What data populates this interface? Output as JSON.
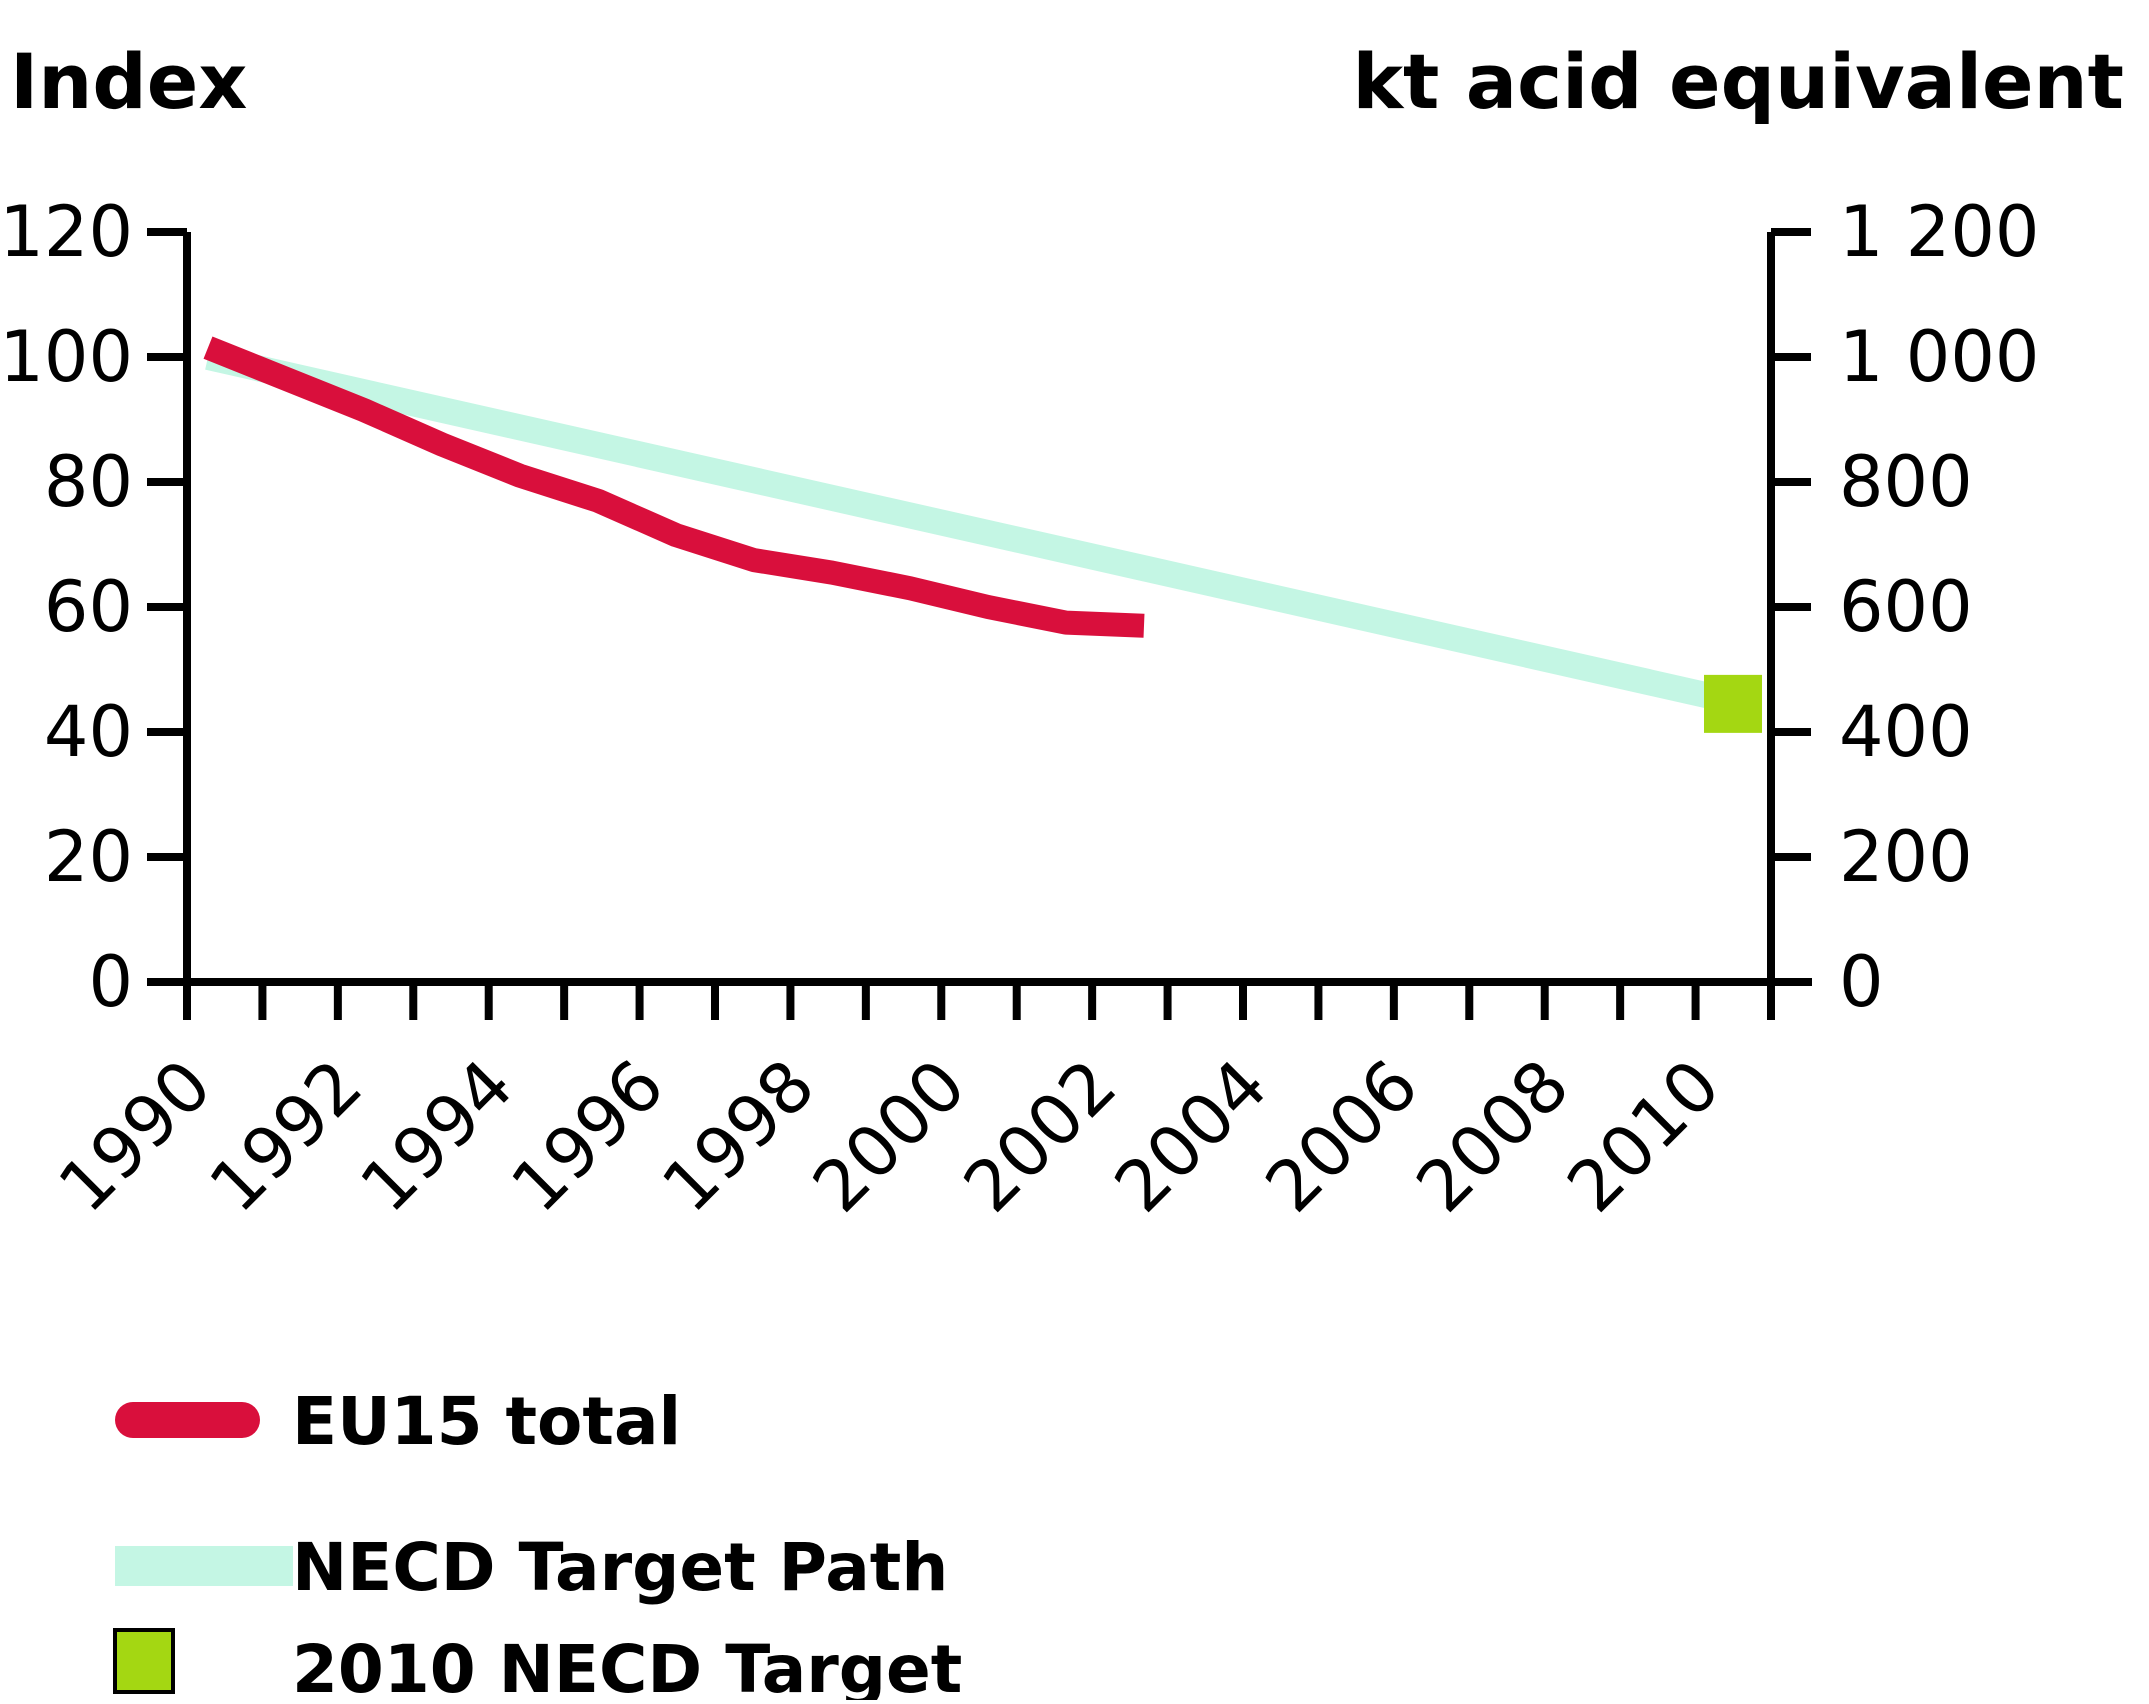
{
  "titles": {
    "left": "Index",
    "right": "kt acid equivalent"
  },
  "chart_data": {
    "type": "line",
    "title": "",
    "grid": false,
    "left_axis": {
      "label": "Index",
      "ticks": [
        0,
        20,
        40,
        60,
        80,
        100,
        120
      ],
      "range": [
        0,
        120
      ]
    },
    "right_axis": {
      "label": "kt acid equivalent",
      "ticks": [
        "0",
        "200",
        "400",
        "600",
        "800",
        "1 000",
        "1 200"
      ],
      "range": [
        0,
        1200
      ]
    },
    "x_axis": {
      "tick_years": [
        1990,
        1991,
        1992,
        1993,
        1994,
        1995,
        1996,
        1997,
        1998,
        1999,
        2000,
        2001,
        2002,
        2003,
        2004,
        2005,
        2006,
        2007,
        2008,
        2009,
        2010
      ],
      "label_years": [
        "1990",
        "1992",
        "1994",
        "1996",
        "1998",
        "2000",
        "2002",
        "2004",
        "2006",
        "2008",
        "2010"
      ],
      "range": [
        1990,
        2010
      ]
    },
    "series": [
      {
        "name": "NECD Target Path",
        "type": "line",
        "color": "#c4f6e4",
        "linewidth": 26,
        "x": [
          1990,
          2010
        ],
        "values": [
          100,
          44.5
        ]
      },
      {
        "name": "EU15 total",
        "type": "line",
        "color": "#d90f3c",
        "linewidth": 24,
        "x": [
          1990,
          1991,
          1992,
          1993,
          1994,
          1995,
          1996,
          1997,
          1998,
          1999,
          2000,
          2001,
          2002
        ],
        "values": [
          101.5,
          96.5,
          91.5,
          86,
          81,
          77,
          71.5,
          67.5,
          65.5,
          63,
          60,
          57.5,
          57
        ]
      },
      {
        "name": "2010 NECD Target",
        "type": "point",
        "marker": "square",
        "color": "#a4d712",
        "x": [
          2010
        ],
        "values": [
          44.5
        ]
      }
    ],
    "legend": {
      "position": "bottom-left",
      "entries": [
        {
          "label": "EU15 total",
          "swatch": "rounded-line",
          "color": "#d90f3c"
        },
        {
          "label": "NECD Target Path",
          "swatch": "line",
          "color": "#c4f6e4"
        },
        {
          "label": "2010 NECD Target",
          "swatch": "square-outlined",
          "color": "#a4d712"
        }
      ]
    }
  }
}
